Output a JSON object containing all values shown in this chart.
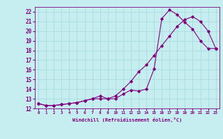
{
  "title": "",
  "xlabel": "Windchill (Refroidissement éolien,°C)",
  "xlim": [
    -0.5,
    23.5
  ],
  "ylim": [
    12,
    22.5
  ],
  "xticks": [
    0,
    1,
    2,
    3,
    4,
    5,
    6,
    7,
    8,
    9,
    10,
    11,
    12,
    13,
    14,
    15,
    16,
    17,
    18,
    19,
    20,
    21,
    22,
    23
  ],
  "yticks": [
    12,
    13,
    14,
    15,
    16,
    17,
    18,
    19,
    20,
    21,
    22
  ],
  "bg_color": "#c6eef0",
  "line_color": "#800080",
  "grid_color": "#aadddd",
  "curve1_x": [
    0,
    1,
    2,
    3,
    4,
    5,
    6,
    7,
    8,
    9,
    10,
    11,
    12,
    13,
    14,
    15,
    16,
    17,
    18,
    19,
    20,
    21,
    22,
    23
  ],
  "curve1_y": [
    12.5,
    12.3,
    12.3,
    12.4,
    12.5,
    12.6,
    12.8,
    13.0,
    13.0,
    13.0,
    13.3,
    14.0,
    14.8,
    15.8,
    16.5,
    17.5,
    18.5,
    19.5,
    20.5,
    21.2,
    21.5,
    21.0,
    20.0,
    18.2
  ],
  "curve2_x": [
    0,
    1,
    2,
    3,
    4,
    5,
    6,
    7,
    8,
    9,
    10,
    11,
    12,
    13,
    14,
    15,
    16,
    17,
    18,
    19,
    20,
    21,
    22,
    23
  ],
  "curve2_y": [
    12.5,
    12.3,
    12.3,
    12.4,
    12.5,
    12.6,
    12.8,
    13.0,
    13.3,
    13.0,
    13.0,
    13.5,
    13.9,
    13.8,
    14.0,
    16.1,
    21.3,
    22.2,
    21.7,
    20.9,
    20.2,
    19.0,
    18.2,
    18.2
  ],
  "marker": "D",
  "markersize": 1.8,
  "linewidth": 0.8
}
